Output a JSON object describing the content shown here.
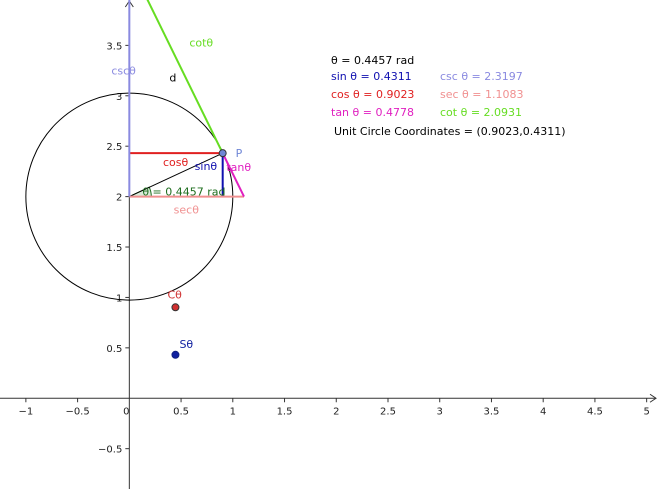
{
  "chart_data": {
    "type": "diagram",
    "xlim": [
      -1.25,
      5.1
    ],
    "ylim": [
      -0.9,
      3.95
    ],
    "grid": false,
    "x_ticks": [
      {
        "v": -1,
        "label": "−1"
      },
      {
        "v": -0.5,
        "label": "−0.5"
      },
      {
        "v": 0,
        "label": "0"
      },
      {
        "v": 0.5,
        "label": "0.5"
      },
      {
        "v": 1,
        "label": "1"
      },
      {
        "v": 1.5,
        "label": "1.5"
      },
      {
        "v": 2,
        "label": "2"
      },
      {
        "v": 2.5,
        "label": "2.5"
      },
      {
        "v": 3,
        "label": "3"
      },
      {
        "v": 3.5,
        "label": "3.5"
      },
      {
        "v": 4,
        "label": "4"
      },
      {
        "v": 4.5,
        "label": "4.5"
      },
      {
        "v": 5,
        "label": "5"
      }
    ],
    "y_ticks": [
      {
        "v": -0.5,
        "label": "−0.5"
      },
      {
        "v": 0.5,
        "label": "0.5"
      },
      {
        "v": 1,
        "label": "1"
      },
      {
        "v": 1.5,
        "label": "1.5"
      },
      {
        "v": 2,
        "label": "2"
      },
      {
        "v": 2.5,
        "label": "2.5"
      },
      {
        "v": 3,
        "label": "3"
      },
      {
        "v": 3.5,
        "label": "3.5"
      }
    ],
    "circle": {
      "cx": 0,
      "cy": 2,
      "r": 1,
      "color": "#000000"
    },
    "point_P": {
      "x": 0.9023,
      "y": 2.4311,
      "color": "#6f86d6",
      "label": "P"
    },
    "point_C": {
      "x": 0.4457,
      "y": 0.9023,
      "color": "#d03030",
      "label": "Cθ"
    },
    "point_S": {
      "x": 0.4457,
      "y": 0.4311,
      "color": "#1020a0",
      "label": "Sθ"
    },
    "segments": {
      "cos": {
        "label": "cosθ",
        "color": "#e02020"
      },
      "sin": {
        "label": "sinθ",
        "color": "#1010b0"
      },
      "tan": {
        "label": "tanθ",
        "color": "#e020c0"
      },
      "sec": {
        "label": "secθ",
        "color": "#f09090"
      },
      "csc": {
        "label": "cscθ",
        "color": "#8a8ae0"
      },
      "cot": {
        "label": "cotθ",
        "color": "#66dd22"
      },
      "d": {
        "label": "d",
        "color": "#000000"
      }
    },
    "angle_label": "θ = 0.4457 rad",
    "angle_color": "#1e6e1e"
  },
  "info": {
    "theta": "θ = 0.4457 rad",
    "sin": "sin θ = 0.4311",
    "csc": "csc θ = 2.3197",
    "cos": "cos θ = 0.9023",
    "sec": "sec θ = 1.1083",
    "tan": "tan θ = 0.4778",
    "cot": "cot θ = 2.0931",
    "coords": "Unit Circle Coordinates = (0.9023,0.4311)"
  },
  "colors": {
    "text": "#000000",
    "sin": "#1010b0",
    "csc": "#8a8ae0",
    "cos": "#e02020",
    "sec": "#f09090",
    "tan": "#e020c0",
    "cot": "#66dd22"
  }
}
